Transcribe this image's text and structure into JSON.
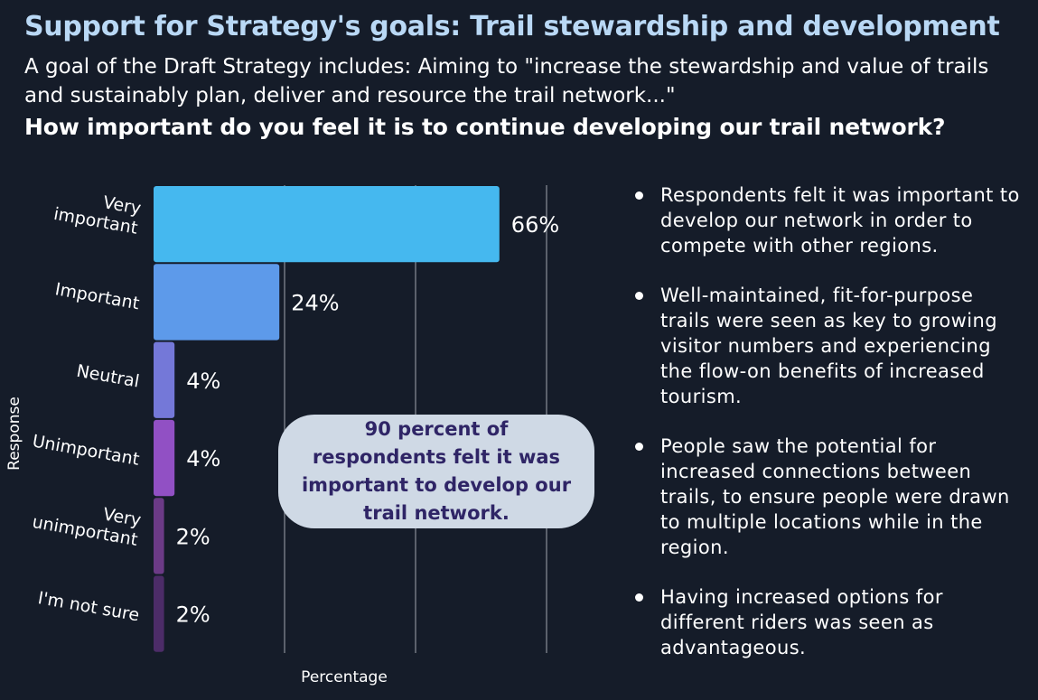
{
  "header": {
    "title": "Support for Strategy's goals: Trail stewardship and development",
    "intro": "A goal of the Draft Strategy includes: Aiming to \"increase the stewardship and value of trails and sustainably plan, deliver and resource the trail network...\"",
    "question": "How important do you feel it is to continue developing our trail network?"
  },
  "chart_data": {
    "type": "bar",
    "orientation": "horizontal",
    "categories": [
      "Very important",
      "Important",
      "Neutral",
      "Unimportant",
      "Very unimportant",
      "I'm not sure"
    ],
    "category_lines": [
      [
        "Very",
        "important"
      ],
      [
        "Important"
      ],
      [
        "Neutral"
      ],
      [
        "Unimportant"
      ],
      [
        "Very",
        "unimportant"
      ],
      [
        "I'm not sure"
      ]
    ],
    "values": [
      66,
      24,
      4,
      4,
      2,
      2
    ],
    "value_labels": [
      "66%",
      "24%",
      "4%",
      "4%",
      "2%",
      "2%"
    ],
    "colors": [
      "#45b8ef",
      "#5d9aea",
      "#7478d8",
      "#9150c4",
      "#6b3a86",
      "#4c2c68"
    ],
    "xlabel": "Percentage",
    "ylabel": "Response",
    "xlim": [
      0,
      75
    ],
    "gridlines": [
      25,
      50,
      75
    ],
    "title": "How important do you feel it is to continue developing our trail network?"
  },
  "callout": {
    "text": "90 percent of respondents felt it was important to develop our trail network."
  },
  "findings": [
    "Respondents felt it was important to develop our network in order to compete with other regions.",
    "Well-maintained, fit-for-purpose trails were seen as key to growing visitor numbers and experiencing the flow-on benefits of increased tourism.",
    "People saw the potential for increased connections between trails, to ensure people were drawn to multiple locations while in the region.",
    "Having increased options for different riders was seen as advantageous."
  ]
}
